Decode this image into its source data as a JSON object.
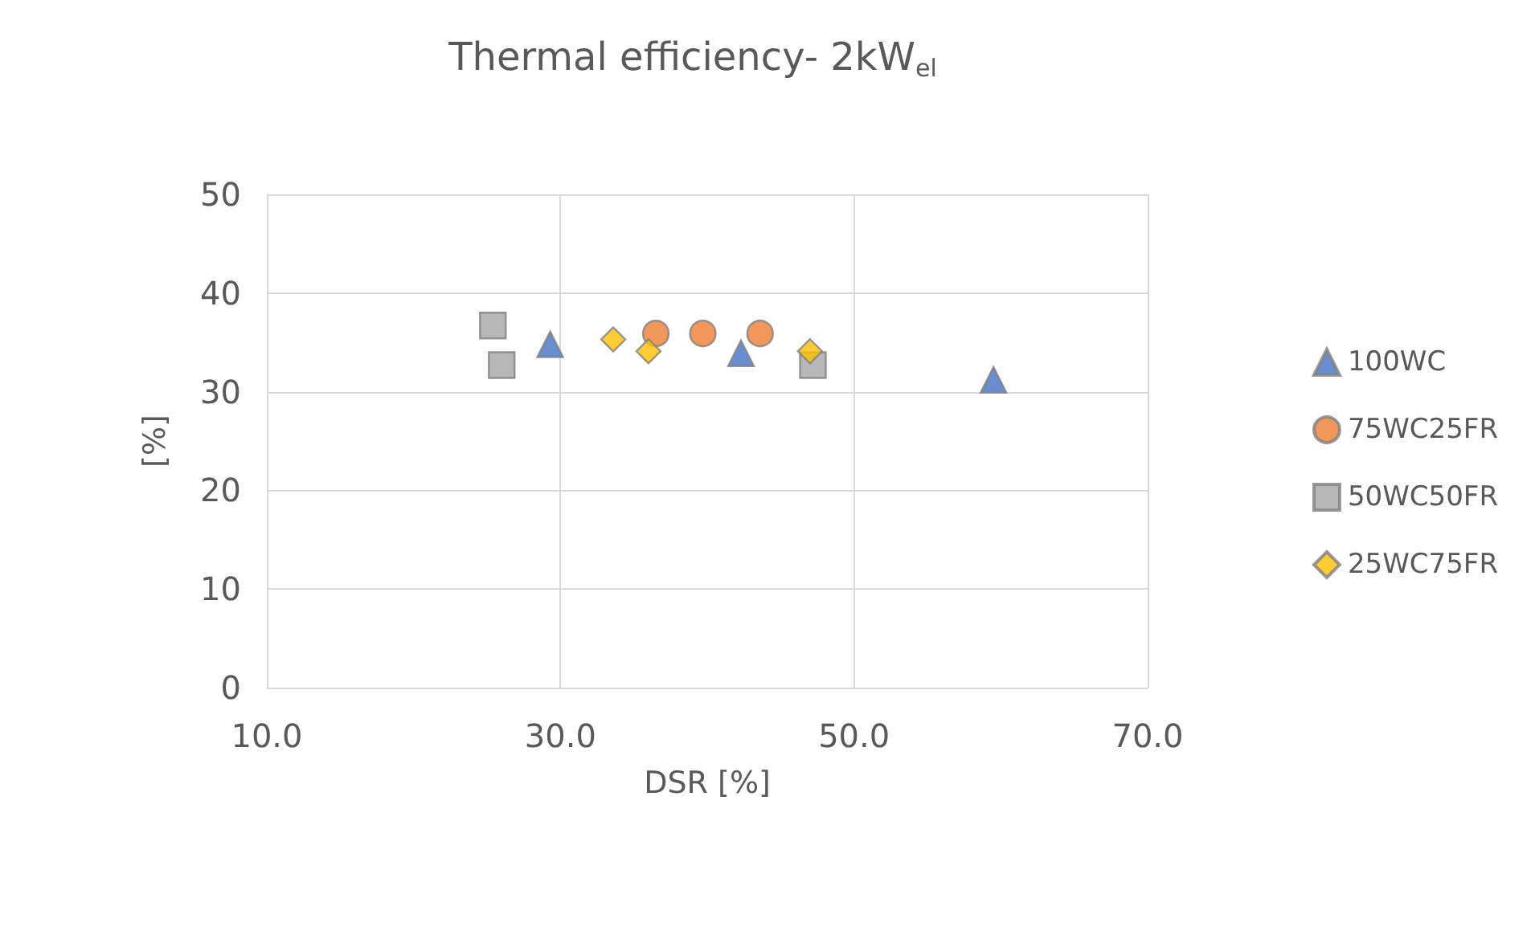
{
  "chart_data": {
    "type": "scatter",
    "title": "Thermal efficiency- 2kW$_{el}$",
    "xlabel": "DSR [%]",
    "ylabel": "[%]",
    "xlim": [
      10,
      70
    ],
    "xticks": [
      {
        "value": 10,
        "label": "10.0"
      },
      {
        "value": 30,
        "label": "30.0"
      },
      {
        "value": 50,
        "label": "50.0"
      },
      {
        "value": 70,
        "label": "70.0"
      }
    ],
    "ylim": [
      0,
      50
    ],
    "yticks": [
      0,
      10,
      20,
      30,
      40,
      50
    ],
    "grid": true,
    "legend": "right",
    "series": [
      {
        "name": "100WC",
        "color": "#4472c4",
        "marker": "triangle",
        "x": [
          29.3,
          42.3,
          59.5
        ],
        "values": [
          34.8,
          33.9,
          31.2
        ]
      },
      {
        "name": "75WC25FR",
        "color": "#ed7d31",
        "marker": "circle",
        "x": [
          36.5,
          39.7,
          43.6
        ],
        "values": [
          35.9,
          35.9,
          35.9
        ]
      },
      {
        "name": "50WC50FR",
        "color": "#a5a5a5",
        "marker": "square",
        "x": [
          25.4,
          26.0,
          47.2
        ],
        "values": [
          36.7,
          32.7,
          32.7
        ]
      },
      {
        "name": "25WC75FR",
        "color": "#ffc000",
        "marker": "diamond",
        "x": [
          33.6,
          36.0,
          47.0
        ],
        "values": [
          35.3,
          34.1,
          34.1
        ]
      }
    ]
  }
}
